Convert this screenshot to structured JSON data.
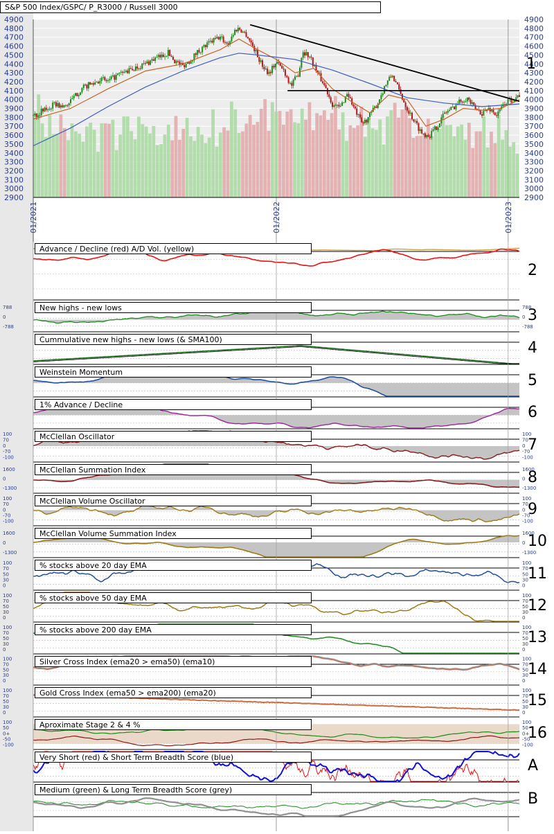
{
  "chart_data": {
    "type": "multi-panel technical chart",
    "title": "S&P 500 Index/GSPC/ P_R3000 / Russell 3000",
    "main": {
      "type": "candlestick",
      "y_ticks": [
        "4900",
        "4800",
        "4700",
        "4600",
        "4500",
        "4400",
        "4300",
        "4200",
        "4100",
        "4000",
        "3900",
        "3800",
        "3700",
        "3600",
        "3500",
        "3400",
        "3300",
        "3200",
        "3100",
        "3000",
        "2900"
      ],
      "ylim": [
        2900,
        4900
      ],
      "x_ticks": [
        "01/2021",
        "01/2022",
        "01/2023"
      ],
      "hline_value": 4100,
      "price_points": [
        [
          0,
          3820
        ],
        [
          2,
          3860
        ],
        [
          4,
          3900
        ],
        [
          6,
          3950
        ],
        [
          8,
          3910
        ],
        [
          10,
          3980
        ],
        [
          12,
          4080
        ],
        [
          14,
          4150
        ],
        [
          16,
          4180
        ],
        [
          18,
          4230
        ],
        [
          20,
          4200
        ],
        [
          22,
          4260
        ],
        [
          24,
          4300
        ],
        [
          26,
          4330
        ],
        [
          28,
          4370
        ],
        [
          30,
          4400
        ],
        [
          32,
          4450
        ],
        [
          34,
          4480
        ],
        [
          36,
          4530
        ],
        [
          38,
          4430
        ],
        [
          40,
          4380
        ],
        [
          42,
          4440
        ],
        [
          44,
          4540
        ],
        [
          46,
          4600
        ],
        [
          48,
          4660
        ],
        [
          50,
          4700
        ],
        [
          52,
          4620
        ],
        [
          54,
          4780
        ],
        [
          55,
          4800
        ],
        [
          57,
          4730
        ],
        [
          59,
          4580
        ],
        [
          61,
          4400
        ],
        [
          63,
          4300
        ],
        [
          65,
          4420
        ],
        [
          67,
          4330
        ],
        [
          69,
          4150
        ],
        [
          71,
          4300
        ],
        [
          72,
          4550
        ],
        [
          74,
          4480
        ],
        [
          76,
          4300
        ],
        [
          78,
          4150
        ],
        [
          80,
          3950
        ],
        [
          82,
          3900
        ],
        [
          84,
          4080
        ],
        [
          86,
          3880
        ],
        [
          88,
          3720
        ],
        [
          90,
          3820
        ],
        [
          92,
          3950
        ],
        [
          94,
          4150
        ],
        [
          96,
          4280
        ],
        [
          98,
          4080
        ],
        [
          100,
          3900
        ],
        [
          102,
          3750
        ],
        [
          104,
          3620
        ],
        [
          106,
          3600
        ],
        [
          108,
          3700
        ],
        [
          110,
          3850
        ],
        [
          112,
          3900
        ],
        [
          114,
          3980
        ],
        [
          116,
          4020
        ],
        [
          118,
          3900
        ],
        [
          120,
          3850
        ],
        [
          122,
          3900
        ],
        [
          124,
          3820
        ],
        [
          126,
          3960
        ],
        [
          128,
          4000
        ],
        [
          130,
          4050
        ]
      ],
      "sma20_points": [
        [
          0,
          3780
        ],
        [
          10,
          3900
        ],
        [
          20,
          4120
        ],
        [
          30,
          4320
        ],
        [
          40,
          4400
        ],
        [
          50,
          4560
        ],
        [
          55,
          4680
        ],
        [
          60,
          4560
        ],
        [
          65,
          4450
        ],
        [
          70,
          4300
        ],
        [
          75,
          4350
        ],
        [
          80,
          4120
        ],
        [
          85,
          3980
        ],
        [
          90,
          3850
        ],
        [
          95,
          4050
        ],
        [
          100,
          4000
        ],
        [
          105,
          3700
        ],
        [
          110,
          3780
        ],
        [
          115,
          3900
        ],
        [
          120,
          3880
        ],
        [
          125,
          3900
        ],
        [
          130,
          4000
        ]
      ],
      "sma200_points": [
        [
          0,
          3480
        ],
        [
          10,
          3680
        ],
        [
          20,
          3920
        ],
        [
          30,
          4140
        ],
        [
          40,
          4320
        ],
        [
          50,
          4470
        ],
        [
          55,
          4520
        ],
        [
          60,
          4500
        ],
        [
          70,
          4450
        ],
        [
          80,
          4330
        ],
        [
          90,
          4180
        ],
        [
          100,
          4020
        ],
        [
          110,
          3960
        ],
        [
          120,
          3920
        ],
        [
          130,
          3950
        ]
      ],
      "volume_values": [
        0.85,
        0.7,
        0.65,
        0.55,
        0.6,
        0.5,
        0.55,
        0.6,
        0.5,
        0.45,
        0.55,
        0.5,
        0.45,
        0.5,
        0.6,
        0.55,
        0.5,
        0.45,
        0.55,
        0.6,
        0.5,
        0.55,
        0.45,
        0.5,
        0.55,
        0.6,
        0.5,
        0.45,
        0.55,
        0.5,
        0.6,
        0.55,
        0.5,
        0.45,
        0.5,
        0.55,
        0.6,
        0.5,
        0.55,
        0.45,
        0.5,
        0.55,
        0.6,
        0.5,
        0.55,
        0.5,
        0.45,
        0.55,
        0.6,
        0.5,
        0.55,
        0.6,
        0.5,
        0.65,
        0.7,
        0.6,
        0.55,
        0.65,
        0.7,
        0.6,
        0.65,
        0.7,
        0.75,
        0.6,
        0.65,
        0.7,
        0.6,
        0.55,
        0.65,
        0.7,
        0.6,
        0.55,
        0.6,
        0.65,
        0.7,
        0.6,
        0.65,
        0.7,
        0.75,
        0.65,
        0.6,
        0.7,
        0.65,
        0.6,
        0.55,
        0.6,
        0.65,
        0.7,
        0.6,
        0.55,
        0.6,
        0.65,
        0.55,
        0.6,
        0.5,
        0.55,
        0.6,
        0.65,
        0.55,
        0.6,
        0.65,
        0.7,
        0.6,
        0.55,
        0.6,
        0.65,
        0.6,
        0.55,
        0.5,
        0.55,
        0.6,
        0.65,
        0.5,
        0.55,
        0.6,
        0.5,
        0.55,
        0.6,
        0.5,
        0.45,
        0.5,
        0.55,
        0.5,
        0.45,
        0.5,
        0.55,
        0.45,
        0.5,
        0.45,
        0.5,
        0.4
      ]
    },
    "panels": [
      {
        "label": "Advance / Decline (red) A/D Vol. (yellow)",
        "num": "2"
      },
      {
        "label": "New highs - new lows",
        "num": "3",
        "axis": [
          "788",
          "0",
          "-788"
        ]
      },
      {
        "label": "Cummulative new highs - new lows (& SMA100)",
        "num": "4"
      },
      {
        "label": "Weinstein Momentum",
        "num": "5"
      },
      {
        "label": "1% Advance / Decline",
        "num": "6"
      },
      {
        "label": "McClellan Oscillator",
        "num": "7",
        "axis": [
          "100",
          "70",
          "0",
          "-70",
          "-100"
        ]
      },
      {
        "label": "McClellan Summation Index",
        "num": "8",
        "axis": [
          "1600",
          "0",
          "-1300"
        ]
      },
      {
        "label": "McClellan Volume Oscillator",
        "num": "9",
        "axis": [
          "100",
          "70",
          "0",
          "-70",
          "-100"
        ]
      },
      {
        "label": "McClellan Volume Summation Index",
        "num": "10",
        "axis": [
          "1600",
          "0",
          "-1300"
        ]
      },
      {
        "label": "% stocks above 20 day EMA",
        "num": "11",
        "axis": [
          "100",
          "70",
          "50",
          "30",
          "0"
        ]
      },
      {
        "label": "% stocks above 50 day EMA",
        "num": "12",
        "axis": [
          "100",
          "70",
          "50",
          "30",
          "0"
        ]
      },
      {
        "label": "% stocks above 200 day EMA",
        "num": "13",
        "axis": [
          "100",
          "70",
          "50",
          "30",
          "0"
        ]
      },
      {
        "label": "Silver Cross Index (ema20 > ema50) (ema10)",
        "num": "14",
        "axis": [
          "100",
          "70",
          "50",
          "30",
          "0"
        ]
      },
      {
        "label": "Gold Cross Index (ema50 > ema200) (ema20)",
        "num": "15",
        "axis": [
          "100",
          "70",
          "50",
          "30",
          "0"
        ]
      },
      {
        "label": "Aproximate Stage 2 & 4 %",
        "num": "16",
        "axis": [
          "100",
          "50",
          "0+",
          "-50",
          "-100"
        ]
      },
      {
        "label": "Very Short (red) & Short Term Breadth Score (blue)",
        "num": "A"
      },
      {
        "label": "Medium (green) & Long Term Breadth Score (grey)",
        "num": "B"
      }
    ],
    "colors": {
      "up": "#1a8a1a",
      "down": "#b01818",
      "sma20": "#c86428",
      "sma200": "#3a5fc0",
      "red": "#ee1111",
      "yellow": "#c8a040",
      "green": "#1a8a1a",
      "blue": "#2050a0",
      "magenta": "#a020a0",
      "maroon": "#8b1a1a",
      "olive": "#a07a10",
      "grey": "#909090"
    }
  }
}
